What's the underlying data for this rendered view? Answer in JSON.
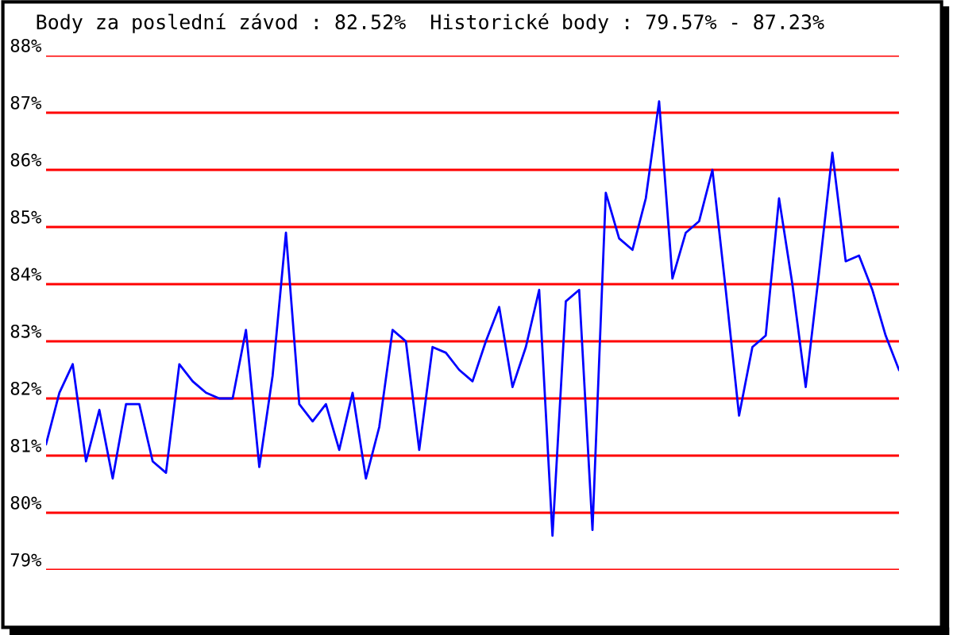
{
  "chart_data": {
    "type": "line",
    "title": "Body za poslední závod : 82.52%  Historické body : 79.57% - 87.23%",
    "categories": [
      null,
      null,
      null,
      null,
      null,
      null,
      null,
      null,
      null,
      null,
      null,
      null,
      null,
      null,
      null,
      null,
      null,
      null,
      null,
      null,
      null,
      null,
      null,
      null,
      null,
      null,
      null,
      null,
      null,
      null,
      null,
      null,
      null,
      null,
      null,
      null,
      null,
      null,
      null,
      null,
      null,
      null,
      null,
      null,
      null,
      null,
      null,
      null,
      null,
      null,
      null,
      null,
      null,
      null,
      null,
      null,
      null,
      null,
      null,
      null,
      null,
      null,
      null,
      null,
      null
    ],
    "series": [
      {
        "color": "#0000ff",
        "values": [
          81.2,
          82.1,
          82.6,
          80.9,
          81.8,
          80.6,
          81.9,
          81.9,
          80.9,
          80.7,
          82.6,
          82.3,
          82.1,
          82.0,
          82.0,
          83.2,
          80.8,
          82.4,
          84.9,
          81.9,
          81.6,
          81.9,
          81.1,
          82.1,
          80.6,
          81.5,
          83.2,
          83.0,
          81.1,
          82.9,
          82.8,
          82.5,
          82.3,
          83.0,
          83.6,
          82.2,
          82.9,
          83.9,
          79.6,
          83.7,
          83.9,
          79.7,
          85.6,
          84.8,
          84.6,
          85.5,
          87.2,
          84.1,
          84.9,
          85.1,
          86.0,
          83.9,
          81.7,
          82.9,
          83.1,
          85.5,
          84.0,
          82.2,
          84.2,
          86.3,
          84.4,
          84.5,
          83.9,
          83.1,
          82.5
        ]
      }
    ],
    "ylim": [
      79,
      88
    ],
    "yticks": [
      {
        "value": 79,
        "label": "79%"
      },
      {
        "value": 80,
        "label": "80%"
      },
      {
        "value": 81,
        "label": "81%"
      },
      {
        "value": 82,
        "label": "82%"
      },
      {
        "value": 83,
        "label": "83%"
      },
      {
        "value": 84,
        "label": "84%"
      },
      {
        "value": 85,
        "label": "85%"
      },
      {
        "value": 86,
        "label": "86%"
      },
      {
        "value": 87,
        "label": "87%"
      },
      {
        "value": 88,
        "label": "88%"
      }
    ],
    "grid": "y",
    "tick_labels": "y",
    "marker": "none",
    "line_style": "solid"
  }
}
